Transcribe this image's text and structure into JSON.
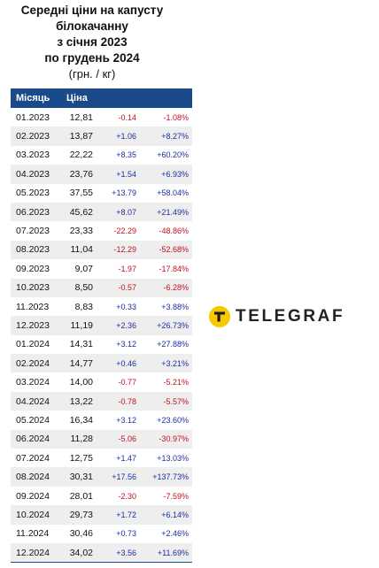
{
  "title": {
    "line1": "Середні ціни на капусту",
    "line2": "білокачанну",
    "line3": "з січня 2023",
    "line4": "по грудень 2024",
    "unit": "(грн. / кг)"
  },
  "table": {
    "headers": {
      "month": "Місяць",
      "price": "Ціна"
    },
    "rows": [
      {
        "month": "01.2023",
        "price": "12,81",
        "abs": "-0.14",
        "pct": "-1.08%",
        "dir": "neg"
      },
      {
        "month": "02.2023",
        "price": "13,87",
        "abs": "+1.06",
        "pct": "+8.27%",
        "dir": "pos"
      },
      {
        "month": "03.2023",
        "price": "22,22",
        "abs": "+8.35",
        "pct": "+60.20%",
        "dir": "pos"
      },
      {
        "month": "04.2023",
        "price": "23,76",
        "abs": "+1.54",
        "pct": "+6.93%",
        "dir": "pos"
      },
      {
        "month": "05.2023",
        "price": "37,55",
        "abs": "+13.79",
        "pct": "+58.04%",
        "dir": "pos"
      },
      {
        "month": "06.2023",
        "price": "45,62",
        "abs": "+8.07",
        "pct": "+21.49%",
        "dir": "pos"
      },
      {
        "month": "07.2023",
        "price": "23,33",
        "abs": "-22.29",
        "pct": "-48.86%",
        "dir": "neg"
      },
      {
        "month": "08.2023",
        "price": "11,04",
        "abs": "-12.29",
        "pct": "-52.68%",
        "dir": "neg"
      },
      {
        "month": "09.2023",
        "price": "9,07",
        "abs": "-1.97",
        "pct": "-17.84%",
        "dir": "neg"
      },
      {
        "month": "10.2023",
        "price": "8,50",
        "abs": "-0.57",
        "pct": "-6.28%",
        "dir": "neg"
      },
      {
        "month": "11.2023",
        "price": "8,83",
        "abs": "+0.33",
        "pct": "+3.88%",
        "dir": "pos"
      },
      {
        "month": "12.2023",
        "price": "11,19",
        "abs": "+2.36",
        "pct": "+26.73%",
        "dir": "pos"
      },
      {
        "month": "01.2024",
        "price": "14,31",
        "abs": "+3.12",
        "pct": "+27.88%",
        "dir": "pos"
      },
      {
        "month": "02.2024",
        "price": "14,77",
        "abs": "+0.46",
        "pct": "+3.21%",
        "dir": "pos"
      },
      {
        "month": "03.2024",
        "price": "14,00",
        "abs": "-0.77",
        "pct": "-5.21%",
        "dir": "neg"
      },
      {
        "month": "04.2024",
        "price": "13,22",
        "abs": "-0.78",
        "pct": "-5.57%",
        "dir": "neg"
      },
      {
        "month": "05.2024",
        "price": "16,34",
        "abs": "+3.12",
        "pct": "+23.60%",
        "dir": "pos"
      },
      {
        "month": "06.2024",
        "price": "11,28",
        "abs": "-5.06",
        "pct": "-30.97%",
        "dir": "neg"
      },
      {
        "month": "07.2024",
        "price": "12,75",
        "abs": "+1.47",
        "pct": "+13.03%",
        "dir": "pos"
      },
      {
        "month": "08.2024",
        "price": "30,31",
        "abs": "+17.56",
        "pct": "+137.73%",
        "dir": "pos"
      },
      {
        "month": "09.2024",
        "price": "28,01",
        "abs": "-2.30",
        "pct": "-7.59%",
        "dir": "neg"
      },
      {
        "month": "10.2024",
        "price": "29,73",
        "abs": "+1.72",
        "pct": "+6.14%",
        "dir": "pos"
      },
      {
        "month": "11.2024",
        "price": "30,46",
        "abs": "+0.73",
        "pct": "+2.46%",
        "dir": "pos"
      },
      {
        "month": "12.2024",
        "price": "34,02",
        "abs": "+3.56",
        "pct": "+11.69%",
        "dir": "pos"
      }
    ]
  },
  "logo": {
    "text": "TELEGRAF",
    "icon": "telegraf-logo-icon"
  },
  "colors": {
    "header_bg": "#1b4a8a",
    "positive": "#1c2f9c",
    "negative": "#c1121f",
    "logo_yellow": "#f5c800",
    "stripe": "#eeeeee"
  }
}
